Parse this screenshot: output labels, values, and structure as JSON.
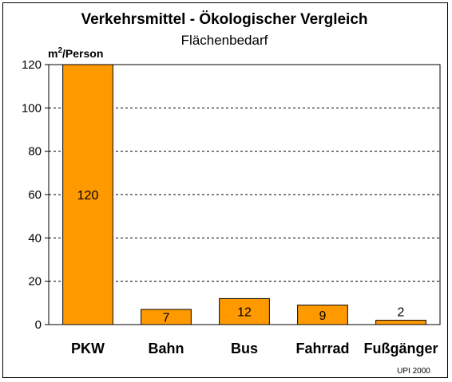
{
  "chart_data": {
    "type": "bar",
    "title": "Verkehrsmittel - Ökologischer Vergleich",
    "subtitle": "Flächenbedarf",
    "ylabel_base": "m",
    "ylabel_sup": "2",
    "ylabel_rest": "/Person",
    "categories": [
      "PKW",
      "Bahn",
      "Bus",
      "Fahrrad",
      "Fußgänger"
    ],
    "values": [
      120,
      7,
      12,
      9,
      2
    ],
    "data_labels": [
      "120",
      "7",
      "12",
      "9",
      "2"
    ],
    "ylim": [
      0,
      120
    ],
    "yticks": [
      "0",
      "20",
      "40",
      "60",
      "80",
      "100",
      "120"
    ],
    "ytick_values": [
      0,
      20,
      40,
      60,
      80,
      100,
      120
    ],
    "grid": "dashed horizontal",
    "legend": "none",
    "bar_color": "#ff9900",
    "source": "UPI 2000"
  }
}
